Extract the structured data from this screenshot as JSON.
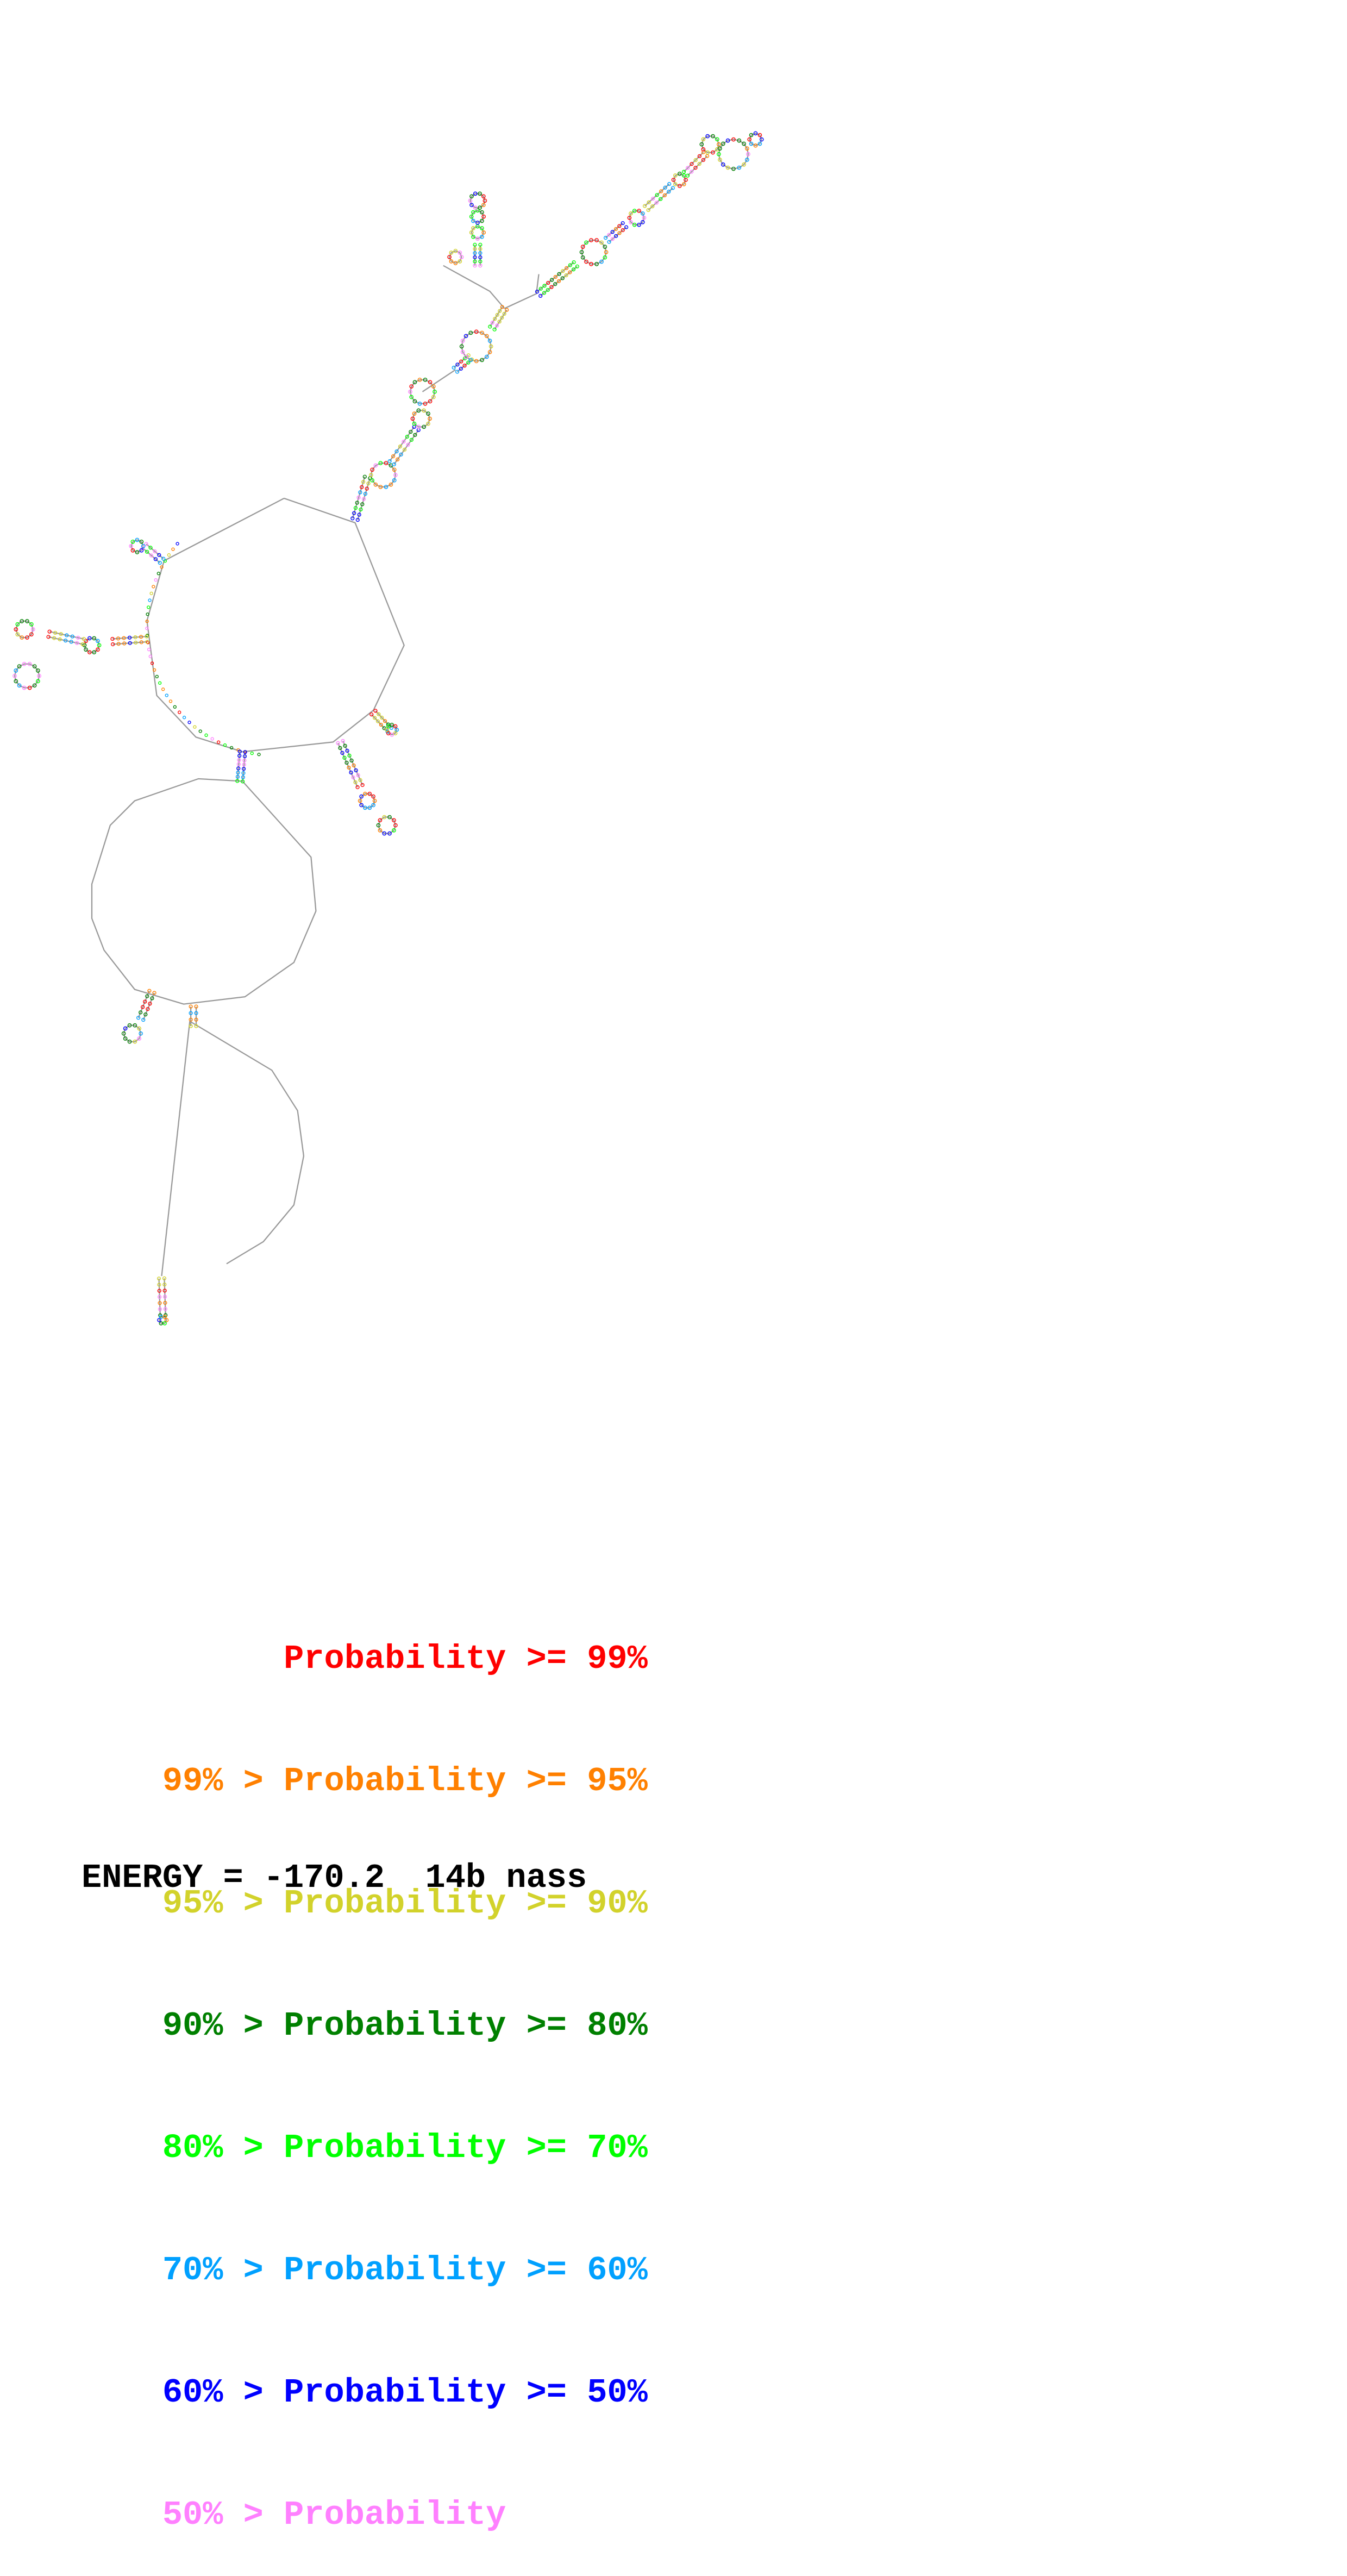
{
  "legend": {
    "rows": [
      {
        "prefix": "",
        "label": "Probability",
        "suffix": ">= 99%",
        "color": "#ff0000"
      },
      {
        "prefix": "99% >",
        "label": "Probability",
        "suffix": ">= 95%",
        "color": "#ff8000"
      },
      {
        "prefix": "95% >",
        "label": "Probability",
        "suffix": ">= 90%",
        "color": "#d2d22b"
      },
      {
        "prefix": "90% >",
        "label": "Probability",
        "suffix": ">= 80%",
        "color": "#008000"
      },
      {
        "prefix": "80% >",
        "label": "Probability",
        "suffix": ">= 70%",
        "color": "#00ff00"
      },
      {
        "prefix": "70% >",
        "label": "Probability",
        "suffix": ">= 60%",
        "color": "#00a0ff"
      },
      {
        "prefix": "60% >",
        "label": "Probability",
        "suffix": ">= 50%",
        "color": "#0000ff"
      },
      {
        "prefix": "50% >",
        "label": "Probability",
        "suffix": "",
        "color": "#ff80ff"
      }
    ]
  },
  "energy": {
    "text": "ENERGY = -170.2  14b nass"
  }
}
